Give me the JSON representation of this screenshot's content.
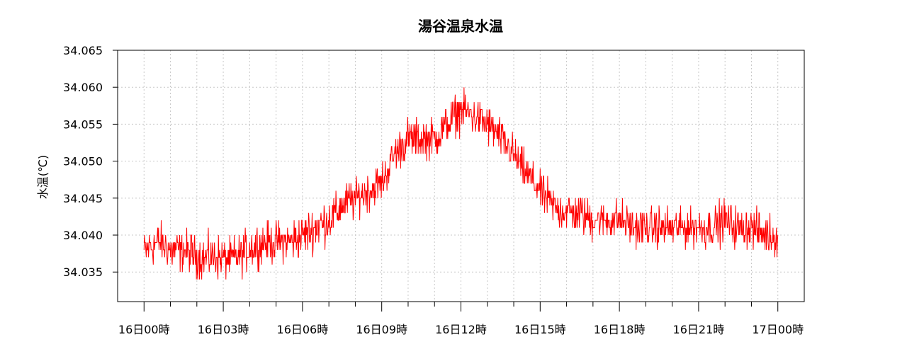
{
  "chart_data": {
    "type": "line",
    "title": "湯谷温泉水温",
    "xlabel": "",
    "ylabel": "水温(℃)",
    "ylim": [
      34.031,
      34.065
    ],
    "yticks": [
      34.035,
      34.04,
      34.045,
      34.05,
      34.055,
      34.06,
      34.065
    ],
    "ytick_labels": [
      "34.035",
      "34.040",
      "34.045",
      "34.050",
      "34.055",
      "34.060",
      "34.065"
    ],
    "xlim_hours": [
      -1,
      25
    ],
    "xtick_hours": [
      0,
      3,
      6,
      9,
      12,
      15,
      18,
      21,
      24
    ],
    "xtick_labels": [
      "16日00時",
      "16日03時",
      "16日06時",
      "16日09時",
      "16日12時",
      "16日15時",
      "16日18時",
      "16日21時",
      "17日00時"
    ],
    "minor_tick_hours": [
      1,
      2,
      4,
      5,
      7,
      8,
      10,
      11,
      13,
      14,
      16,
      17,
      19,
      20,
      22,
      23
    ],
    "grid": true,
    "series": [
      {
        "name": "",
        "color": "#ff0000",
        "x_hours": [
          0,
          0.5,
          1,
          1.5,
          2,
          2.5,
          3,
          3.5,
          4,
          4.5,
          5,
          5.5,
          6,
          6.5,
          7,
          7.5,
          8,
          8.5,
          9,
          9.5,
          10,
          10.5,
          11,
          11.5,
          12,
          12.5,
          13,
          13.5,
          14,
          14.5,
          15,
          15.5,
          16,
          16.5,
          17,
          17.5,
          18,
          18.5,
          19,
          19.5,
          20,
          20.5,
          21,
          21.5,
          22,
          22.5,
          23,
          23.5,
          24
        ],
        "values": [
          34.038,
          34.039,
          34.038,
          34.038,
          34.037,
          34.037,
          34.037,
          34.037,
          34.038,
          34.039,
          34.039,
          34.039,
          34.04,
          34.041,
          34.042,
          34.044,
          34.045,
          34.046,
          34.047,
          34.051,
          34.053,
          34.053,
          34.053,
          34.055,
          34.057,
          34.056,
          34.055,
          34.053,
          34.051,
          34.048,
          34.046,
          34.044,
          34.043,
          34.043,
          34.042,
          34.042,
          34.042,
          34.041,
          34.041,
          34.041,
          34.041,
          34.041,
          34.041,
          34.041,
          34.042,
          34.041,
          34.041,
          34.04,
          34.04
        ],
        "noise_amplitude": 0.0025
      }
    ]
  }
}
